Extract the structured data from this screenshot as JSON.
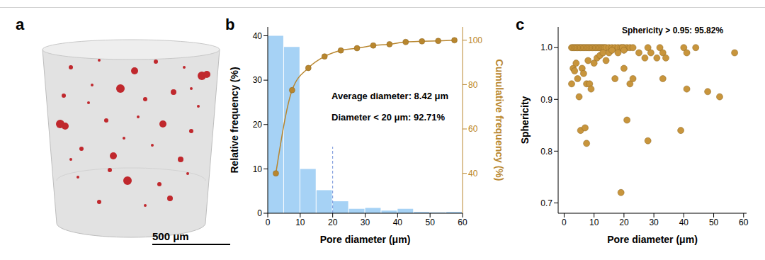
{
  "chart_data": [
    {
      "type": "image",
      "panel": "a",
      "scale_bar": "500 μm"
    },
    {
      "type": "bar",
      "panel": "b",
      "x_label": "Pore diameter (μm)",
      "y_label": "Relative frequency (%)",
      "y2_label": "Cumulative frequency (%)",
      "annotations": [
        "Average diameter: 8.42 μm",
        "Diameter < 20 μm: 92.71%"
      ],
      "bins": [
        0,
        5,
        10,
        15,
        20,
        25,
        30,
        35,
        40,
        45,
        50,
        55,
        60
      ],
      "series": [
        {
          "type": "bar",
          "color": "#a6d2f5",
          "values": [
            40,
            37.5,
            10,
            5.2,
            2.7,
            1,
            1.2,
            0.6,
            1,
            0.3,
            0.2,
            0.3
          ]
        },
        {
          "type": "line",
          "axis": "y2",
          "color": "#b8862e",
          "marker": "circle",
          "line_style": "solid",
          "x": [
            2.5,
            7.5,
            12.5,
            17.5,
            22.5,
            27.5,
            32.5,
            37.5,
            42.5,
            47.5,
            52.5,
            57.5
          ],
          "values": [
            40,
            77.5,
            87.5,
            92.7,
            95.4,
            96.4,
            97.6,
            98.2,
            99.2,
            99.5,
            99.7,
            100
          ]
        }
      ],
      "reference_line": {
        "x": 20,
        "y": [
          0,
          15
        ],
        "line_style": "dashed",
        "color": "#6f8fd8"
      },
      "xlim": [
        0,
        60
      ],
      "xticks": [
        0,
        10,
        20,
        30,
        40,
        50,
        60
      ],
      "ylim": [
        0,
        42
      ],
      "yticks": [
        0,
        10,
        20,
        30,
        40
      ],
      "y2lim": [
        22,
        106
      ],
      "y2ticks": [
        40,
        60,
        80,
        100
      ]
    },
    {
      "type": "scatter",
      "panel": "c",
      "x_label": "Pore diameter (μm)",
      "y_label": "Sphericity",
      "annotations": [
        "Sphericity > 0.95: 95.82%"
      ],
      "color": "#c8953c",
      "marker": "circle",
      "x": [
        2.5,
        3,
        3.5,
        4,
        4.5,
        5,
        5.5,
        6,
        6.5,
        7,
        7.5,
        8,
        8.5,
        9,
        9.5,
        10,
        10.5,
        11,
        11.5,
        12,
        12.5,
        13,
        13.5,
        14,
        15,
        16,
        17,
        18,
        19,
        20,
        21,
        22,
        2.5,
        3,
        3.5,
        4,
        4.5,
        5,
        5.5,
        6,
        6.5,
        7,
        7.5,
        7.5,
        8,
        8.5,
        9,
        10,
        11,
        12,
        13,
        14,
        15,
        16,
        17,
        19,
        20,
        21,
        22,
        23,
        23,
        25,
        27,
        28,
        28,
        29,
        31,
        32,
        33,
        33,
        34,
        39,
        40,
        41,
        41,
        44,
        48,
        52,
        57,
        18,
        19.5,
        20
      ],
      "values": [
        1,
        1,
        1,
        1,
        1,
        1,
        1,
        1,
        1,
        1,
        1,
        1,
        1,
        1,
        1,
        1,
        1,
        1,
        1,
        1,
        1,
        1,
        1,
        1,
        1,
        1,
        1,
        1,
        1,
        1,
        1,
        1,
        0.93,
        0.96,
        0.955,
        0.97,
        0.94,
        0.905,
        0.84,
        0.96,
        0.95,
        0.845,
        0.815,
        0.93,
        0.975,
        0.93,
        0.92,
        0.97,
        0.98,
        0.985,
        0.99,
        0.975,
        0.99,
        0.995,
        0.94,
        0.72,
        0.96,
        0.86,
        0.93,
        0.94,
        1,
        0.99,
        0.98,
        1,
        0.82,
        0.99,
        0.98,
        1,
        0.99,
        0.94,
        0.98,
        0.84,
        1,
        0.99,
        0.92,
        1,
        0.915,
        0.905,
        0.99,
        0.99,
        1,
        0.995
      ],
      "xlim": [
        -2,
        61
      ],
      "xticks": [
        0,
        10,
        20,
        30,
        40,
        50,
        60
      ],
      "ylim": [
        0.68,
        1.04
      ],
      "yticks": [
        0.7,
        0.8,
        0.9,
        {
          "value": 1.0,
          "label": "1.0"
        }
      ]
    }
  ]
}
